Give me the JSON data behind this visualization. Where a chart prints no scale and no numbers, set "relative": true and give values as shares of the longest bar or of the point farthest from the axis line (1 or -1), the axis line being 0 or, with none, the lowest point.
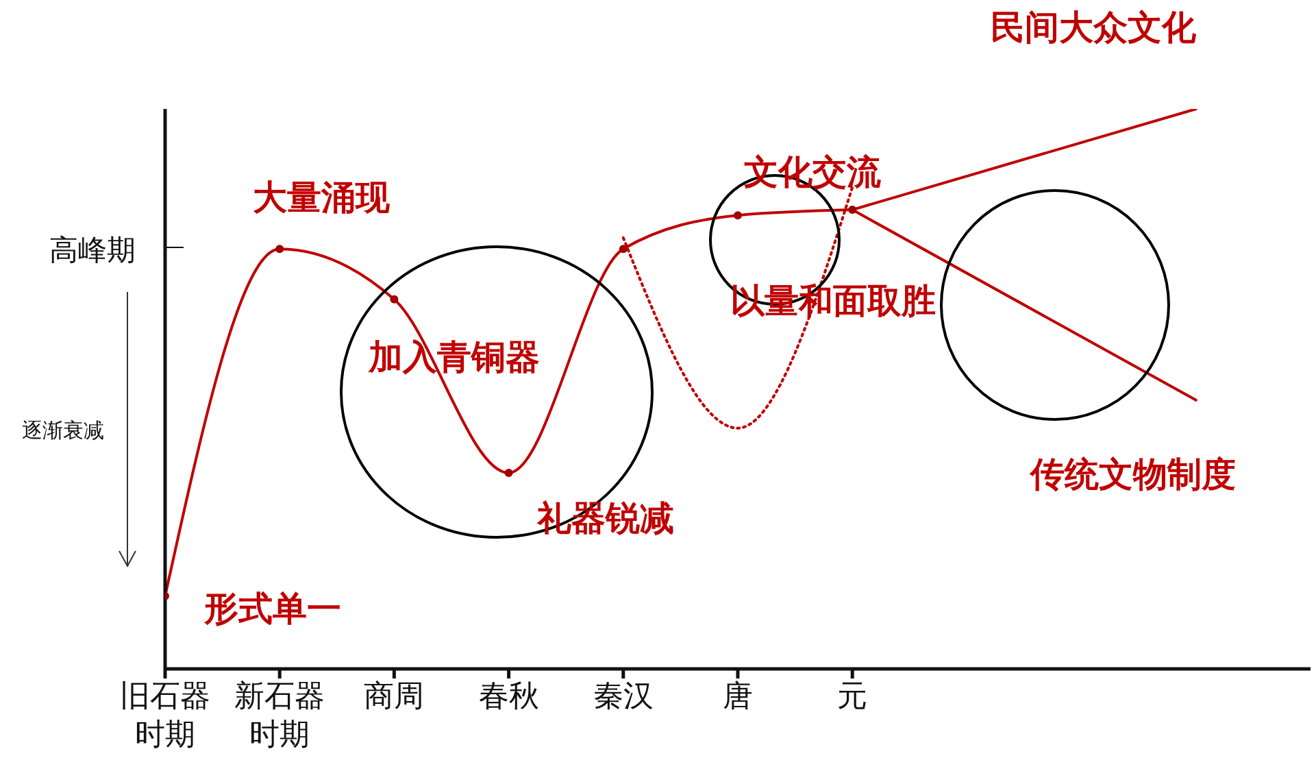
{
  "chart_data": {
    "type": "line",
    "relative": true,
    "categories": [
      "旧石器时期",
      "新石器时期",
      "商周",
      "春秋",
      "秦汉",
      "唐",
      "元",
      null,
      null,
      null
    ],
    "series": [
      {
        "color": "#c00000",
        "marker": "circle",
        "line_style": "solid",
        "values": [
          0.13,
          0.75,
          0.66,
          0.35,
          0.75,
          0.81,
          0.82,
          null,
          null,
          null
        ]
      },
      {
        "color": "#c00000",
        "marker": "none",
        "line_style": "solid",
        "values": [
          null,
          null,
          null,
          null,
          null,
          null,
          0.82,
          null,
          null,
          1.0
        ]
      },
      {
        "color": "#c00000",
        "marker": "none",
        "line_style": "solid",
        "values": [
          null,
          null,
          null,
          null,
          null,
          null,
          0.82,
          null,
          null,
          0.48
        ]
      },
      {
        "color": "#c00000",
        "marker": "none",
        "line_style": "dotted",
        "values": [
          null,
          null,
          null,
          null,
          0.77,
          0.43,
          0.86,
          null,
          null,
          null
        ]
      }
    ],
    "annotations": [
      "民间大众文化",
      "大量涌现",
      "加入青铜器",
      "礼器锐减",
      "形式单一",
      "文化交流",
      "以量和面取胜",
      "传统文物制度",
      "高峰期",
      "逐渐衰减"
    ]
  }
}
